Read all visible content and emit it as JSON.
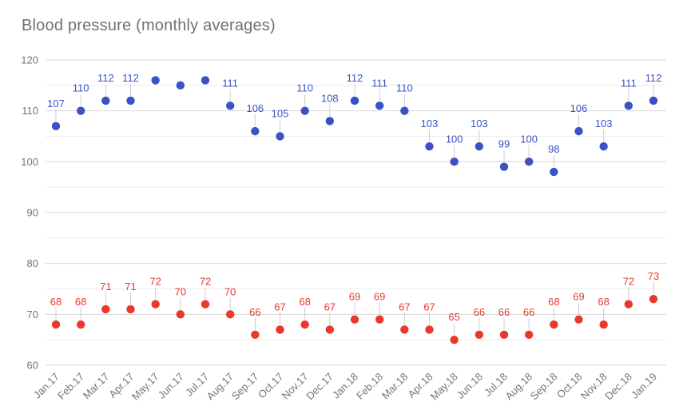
{
  "header": {
    "title": "Blood pressure (monthly averages)",
    "title_color": "#717171"
  },
  "chart_data": {
    "type": "scatter",
    "title": "Blood pressure (monthly averages)",
    "categories": [
      "Jan.17",
      "Feb.17",
      "Mar.17",
      "Apr.17",
      "May.17",
      "Jun.17",
      "Jul.17",
      "Aug.17",
      "Sep.17",
      "Oct.17",
      "Nov.17",
      "Dec.17",
      "Jan.18",
      "Feb.18",
      "Mar.18",
      "Apr.18",
      "May.18",
      "Jun.18",
      "Jul.18",
      "Aug.18",
      "Sep.18",
      "Oct.18",
      "Nov.18",
      "Dec.18",
      "Jan.19"
    ],
    "series": [
      {
        "name": "series_blue",
        "color": "#3c52c4",
        "values": [
          107,
          110,
          112,
          112,
          116,
          115,
          116,
          111,
          106,
          105,
          110,
          108,
          112,
          111,
          110,
          103,
          100,
          103,
          99,
          100,
          98,
          106,
          103,
          111,
          112
        ],
        "labels": [
          "107",
          "110",
          "112",
          "112",
          null,
          null,
          null,
          "111",
          "106",
          "105",
          "110",
          "108",
          "112",
          "111",
          "110",
          "103",
          "100",
          "103",
          "99",
          "100",
          "98",
          "106",
          "103",
          "111",
          "112"
        ]
      },
      {
        "name": "series_red",
        "color": "#e8392c",
        "values": [
          68,
          68,
          71,
          71,
          72,
          70,
          72,
          70,
          66,
          67,
          68,
          67,
          69,
          69,
          67,
          67,
          65,
          66,
          66,
          66,
          68,
          69,
          68,
          72,
          73
        ],
        "labels": [
          "68",
          "68",
          "71",
          "71",
          "72",
          "70",
          "72",
          "70",
          "66",
          "67",
          "68",
          "67",
          "69",
          "69",
          "67",
          "67",
          "65",
          "66",
          "66",
          "66",
          "68",
          "69",
          "68",
          "72",
          "73"
        ]
      }
    ],
    "xlabel": "",
    "ylabel": "",
    "ylim": [
      60,
      120
    ],
    "y_major_ticks": [
      60,
      70,
      80,
      90,
      100,
      110,
      120
    ],
    "y_minor_ticks": [
      65,
      75,
      85,
      95,
      105,
      115
    ],
    "grid": {
      "major_color": "#dadada",
      "minor_color": "#ececec",
      "on": true
    },
    "axis_text_color": "#757575",
    "annotation_stem_color": "#cccccc",
    "legend_position": "none"
  }
}
